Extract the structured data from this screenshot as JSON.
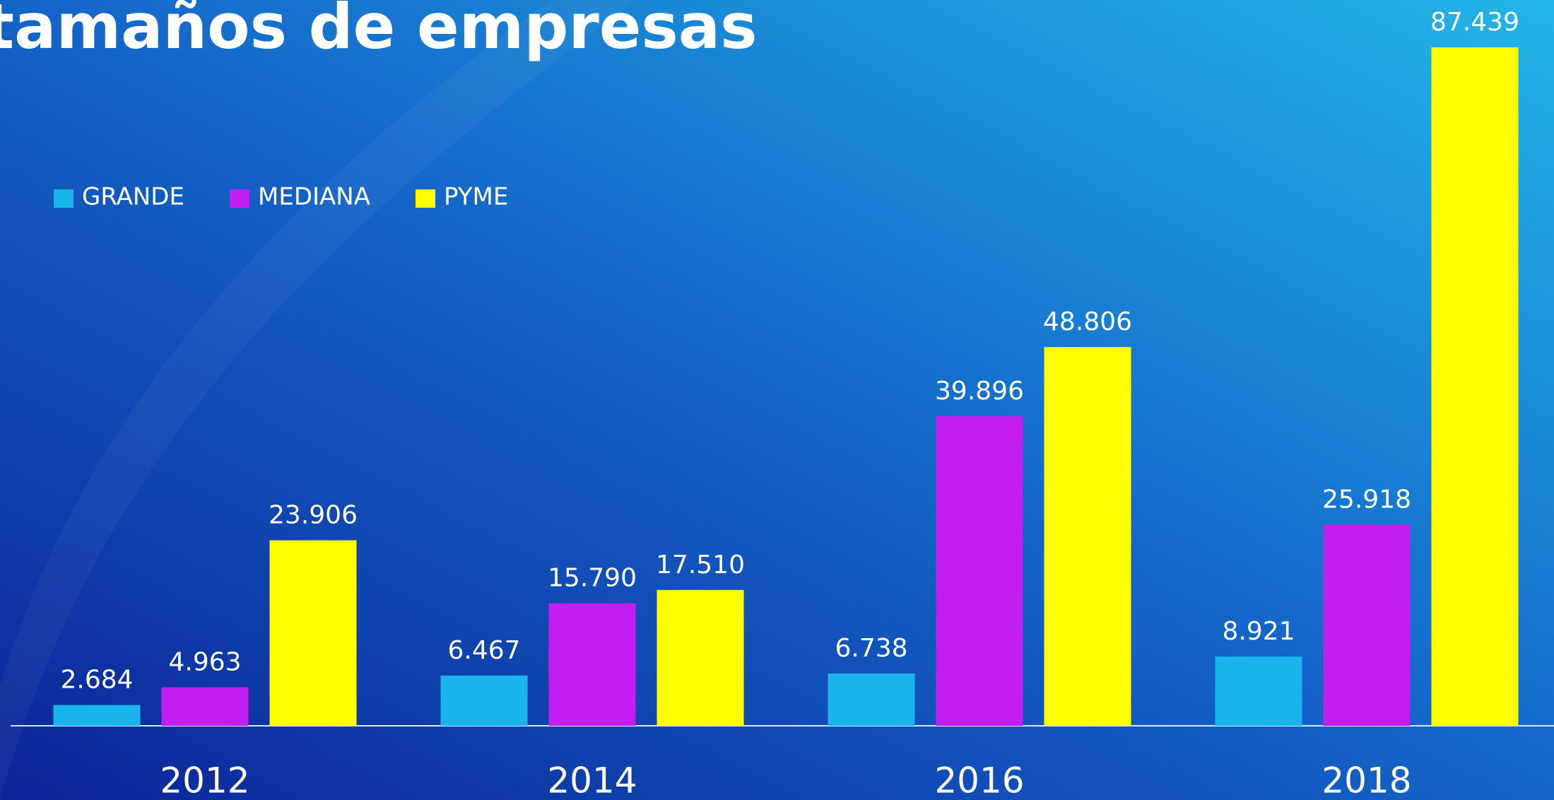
{
  "chart_data": {
    "type": "bar",
    "title": "tamaños de empresas",
    "categories": [
      "2012",
      "2014",
      "2016",
      "2018"
    ],
    "series": [
      {
        "name": "GRANDE",
        "color": "#19b4ec",
        "values": [
          2684,
          6467,
          6738,
          8921
        ],
        "value_labels": [
          "2.684",
          "6.467",
          "6.738",
          "8.921"
        ]
      },
      {
        "name": "MEDIANA",
        "color": "#c21ef2",
        "values": [
          4963,
          15790,
          39896,
          25918
        ],
        "value_labels": [
          "4.963",
          "15.790",
          "39.896",
          "25.918"
        ]
      },
      {
        "name": "PYME",
        "color": "#ffff00",
        "values": [
          23906,
          17510,
          48806,
          87439
        ],
        "value_labels": [
          "23.906",
          "17.510",
          "48.806",
          "87.439"
        ]
      }
    ],
    "legend": "top-left"
  }
}
